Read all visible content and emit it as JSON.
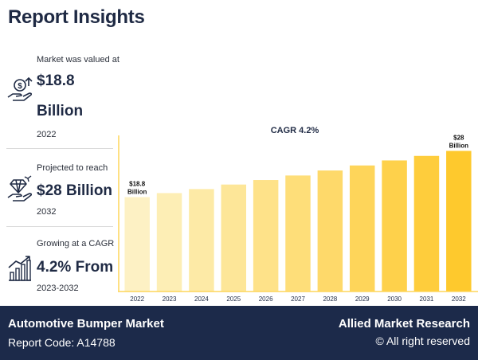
{
  "header": {
    "title": "Report Insights"
  },
  "stats": [
    {
      "caption": "Market was valued at",
      "value_line1": "$18.8",
      "value_line2": "Billion",
      "year": "2022",
      "icon": "money-hand-icon"
    },
    {
      "caption": "Projected to reach",
      "value_line1": "$28 Billion",
      "year": "2032",
      "icon": "diamond-hand-icon"
    },
    {
      "caption": "Growing at a CAGR",
      "value_line1": "4.2% From",
      "year": "2023-2032",
      "icon": "growth-chart-icon"
    }
  ],
  "chart_data": {
    "type": "bar",
    "title": "CAGR 4.2%",
    "categories": [
      "2022",
      "2023",
      "2024",
      "2025",
      "2026",
      "2027",
      "2028",
      "2029",
      "2030",
      "2031",
      "2032"
    ],
    "values": [
      18.8,
      19.6,
      20.4,
      21.3,
      22.2,
      23.1,
      24.1,
      25.1,
      26.1,
      27.0,
      28.0
    ],
    "ylim": [
      0,
      29.5
    ],
    "annotations": [
      {
        "category": "2022",
        "line1": "$18.8",
        "line2": "Billion"
      },
      {
        "category": "2032",
        "line1": "$28",
        "line2": "Billion"
      }
    ],
    "colors": [
      "#fdf1c4",
      "#fdeeb5",
      "#fdeaa6",
      "#fde698",
      "#fee289",
      "#fede79",
      "#fed96a",
      "#fed55a",
      "#fed14b",
      "#fecd3c",
      "#fec92d"
    ],
    "baseline_color": "#fdd65a",
    "xlabel": "",
    "ylabel": ""
  },
  "footer": {
    "market": "Automotive Bumper Market",
    "report_code": "Report Code: A14788",
    "brand": "Allied Market Research",
    "rights": "© All right reserved"
  },
  "theme": {
    "navy": "#1c2a4a",
    "text": "#1f2a44"
  }
}
